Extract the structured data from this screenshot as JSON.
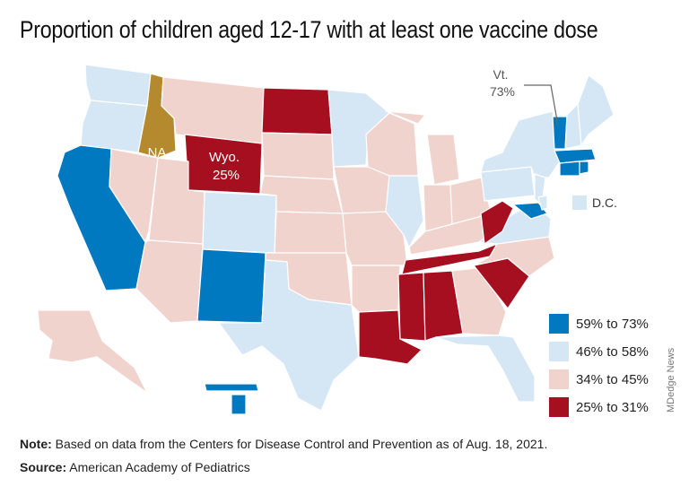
{
  "title": "Proportion of children aged 12-17 with at least one vaccine dose",
  "colors": {
    "high": "#0079c1",
    "mid": "#d5e6f5",
    "low": "#f1d3cd",
    "lowest": "#a50f1f",
    "na": "#b58a2e",
    "border": "#ffffff"
  },
  "legend": [
    {
      "label": "59% to 73%",
      "color": "#0079c1"
    },
    {
      "label": "46% to 58%",
      "color": "#d5e6f5"
    },
    {
      "label": "34% to 45%",
      "color": "#f1d3cd"
    },
    {
      "label": "25% to 31%",
      "color": "#a50f1f"
    }
  ],
  "callouts": {
    "vt_name": "Vt.",
    "vt_value": "73%",
    "wyo_name": "Wyo.",
    "wyo_value": "25%",
    "idaho": "NA",
    "dc": "D.C."
  },
  "credit": "MDedge News",
  "note_label": "Note:",
  "note_text": " Based on data from the Centers for Disease Control and Prevention as of Aug. 18, 2021.",
  "source_label": "Source:",
  "source_text": " American Academy of Pediatrics"
}
